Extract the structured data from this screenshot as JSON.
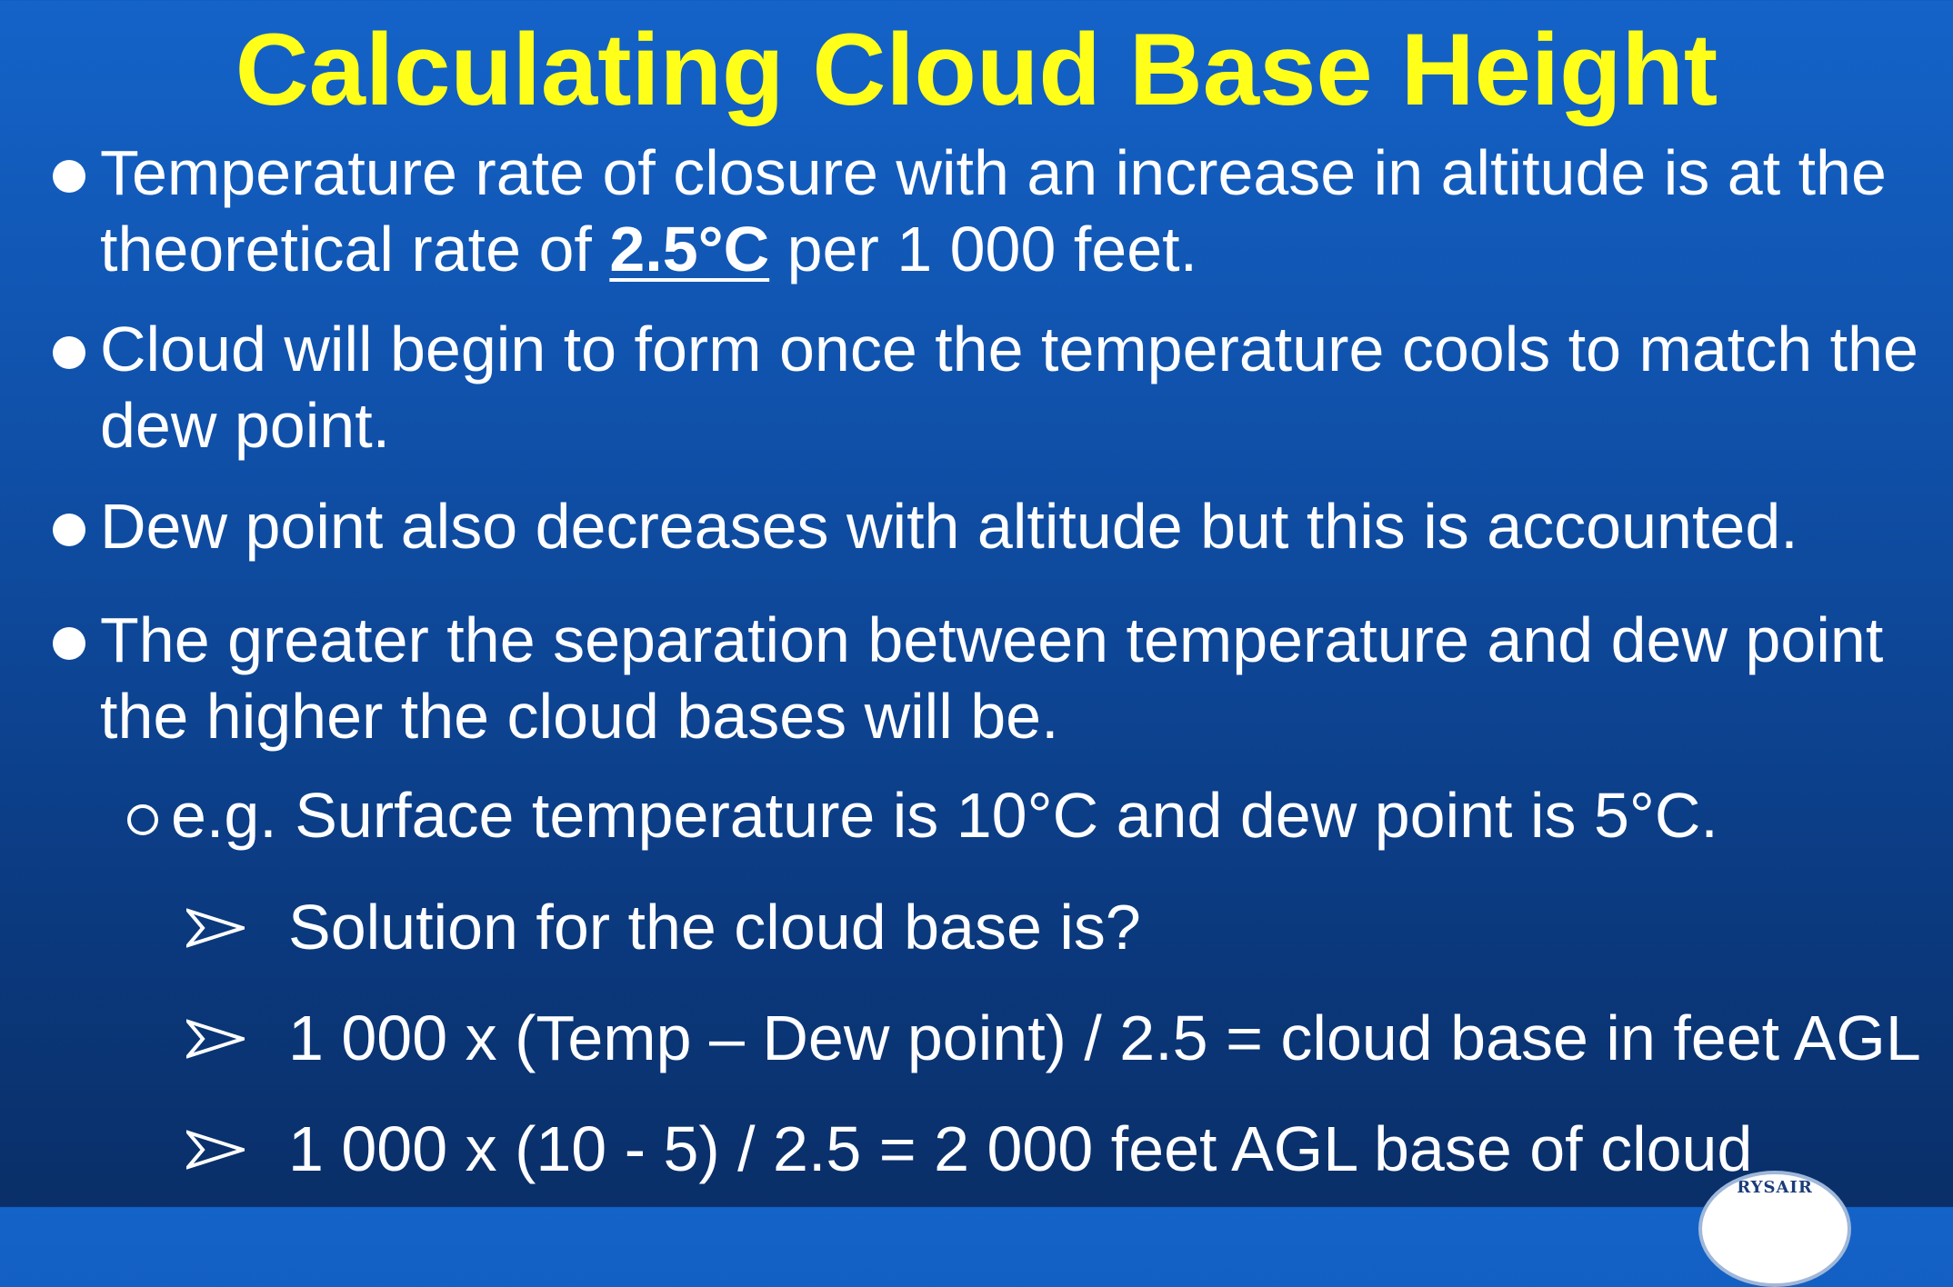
{
  "slide": {
    "title": "Calculating Cloud Base Height",
    "bullets": [
      {
        "pre": "Temperature rate of closure with an increase in altitude is at the theoretical rate of ",
        "emphasis": "2.5°C",
        "post": " per 1 000 feet."
      },
      {
        "text": "Cloud will begin to form once the temperature cools to match the dew point."
      },
      {
        "text": "Dew point also decreases with altitude but this is accounted."
      },
      {
        "text": "The greater the separation between temperature and dew point the higher the cloud bases will be."
      }
    ],
    "example": "e.g. Surface temperature is 10°C and dew point is 5°C.",
    "steps": [
      "Solution for the cloud base is?",
      "1 000 x (Temp – Dew point) / 2.5 = cloud base in feet AGL",
      "1 000 x (10 - 5) / 2.5 = 2 000 feet AGL base of cloud"
    ],
    "logo": {
      "text": "RYSAIR"
    }
  },
  "colors": {
    "title": "#ffff1a",
    "text": "#ffffff",
    "background_top": "#1463c9",
    "background_bottom": "#0a2f68"
  },
  "icons": {
    "bullet": "filled-circle-bullet-icon",
    "sub_bullet": "hollow-circle-bullet-icon",
    "step_bullet": "arrowhead-bullet-icon"
  }
}
